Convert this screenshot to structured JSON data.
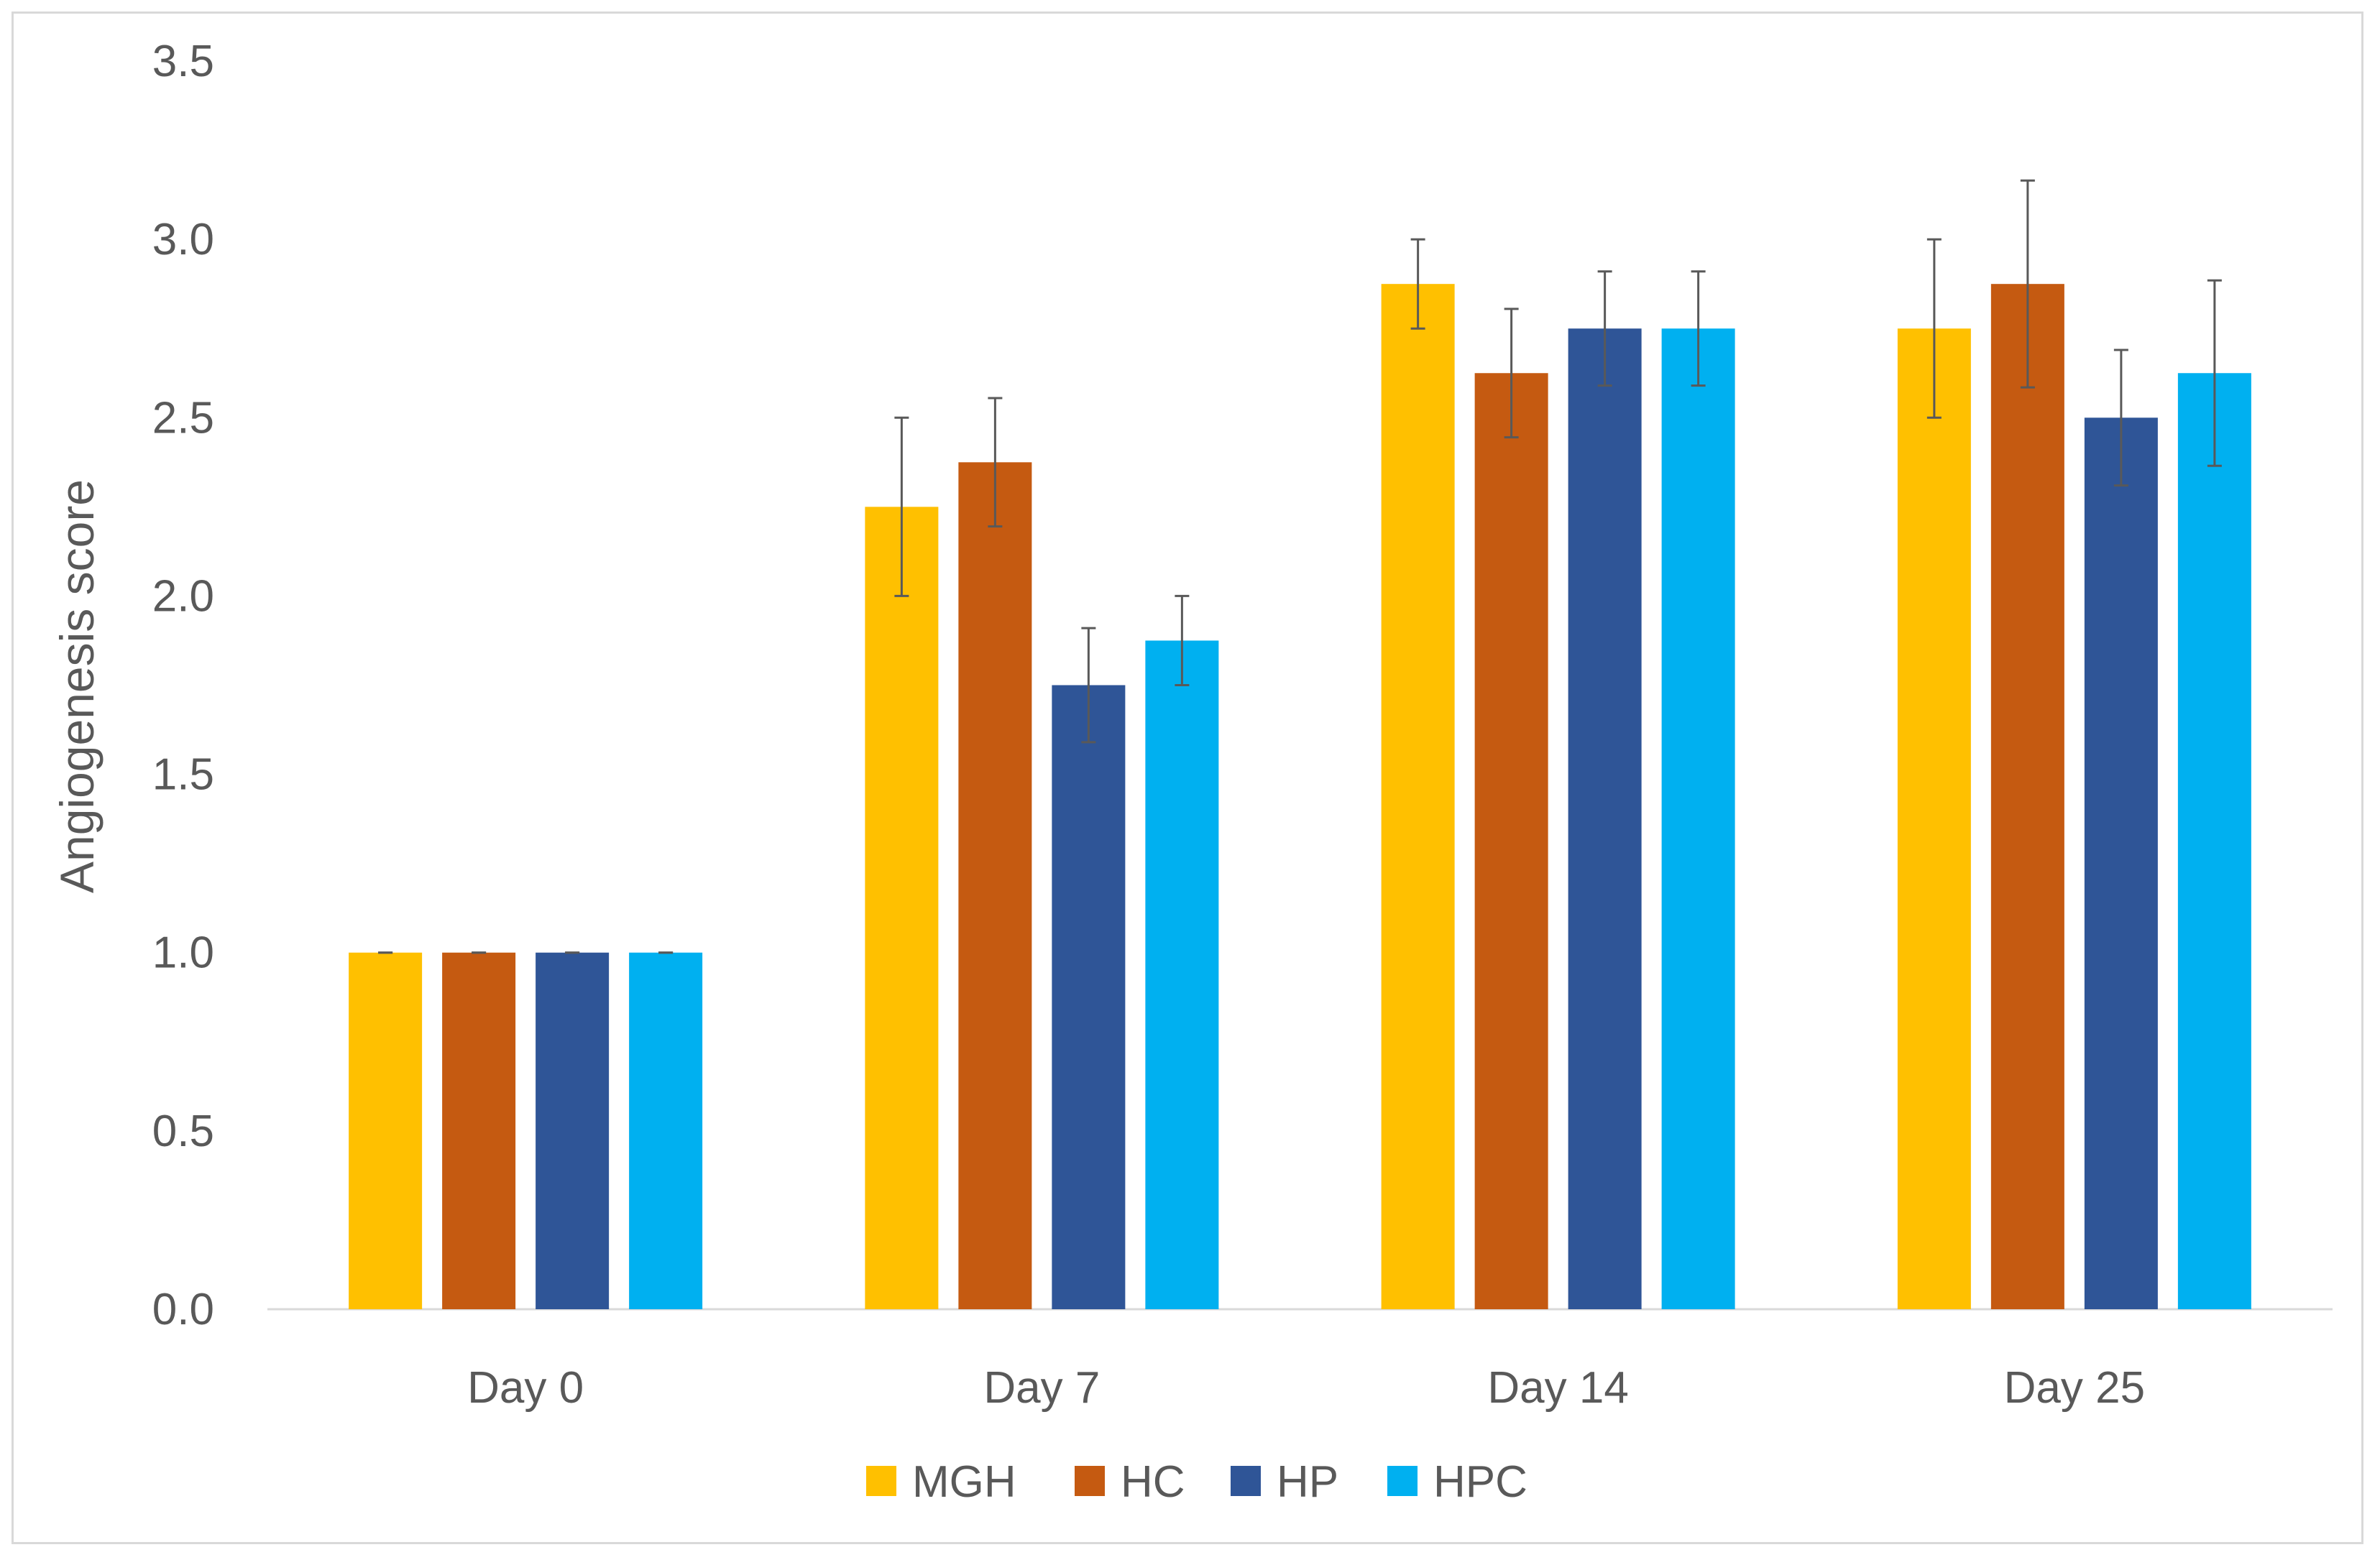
{
  "chart_data": {
    "type": "bar",
    "title": "",
    "xlabel": "",
    "ylabel": "Angiogenesis score",
    "ylim": [
      0,
      3.5
    ],
    "yticks": [
      "0.0",
      "0.5",
      "1.0",
      "1.5",
      "2.0",
      "2.5",
      "3.0",
      "3.5"
    ],
    "grid": false,
    "legend_position": "bottom",
    "categories": [
      "Day 0",
      "Day 7",
      "Day 14",
      "Day 25"
    ],
    "series": [
      {
        "name": "MGH",
        "color": "#FFC000",
        "values": [
          1.0,
          2.25,
          2.875,
          2.75
        ],
        "errors": [
          0.0,
          0.25,
          0.125,
          0.25
        ]
      },
      {
        "name": "HC",
        "color": "#C55A11",
        "values": [
          1.0,
          2.375,
          2.625,
          2.875
        ],
        "errors": [
          0.0,
          0.18,
          0.18,
          0.29
        ]
      },
      {
        "name": "HP",
        "color": "#2F5597",
        "values": [
          1.0,
          1.75,
          2.75,
          2.5
        ],
        "errors": [
          0.0,
          0.16,
          0.16,
          0.19
        ]
      },
      {
        "name": "HPC",
        "color": "#00B0F0",
        "values": [
          1.0,
          1.875,
          2.75,
          2.625
        ],
        "errors": [
          0.0,
          0.125,
          0.16,
          0.26
        ]
      }
    ]
  }
}
